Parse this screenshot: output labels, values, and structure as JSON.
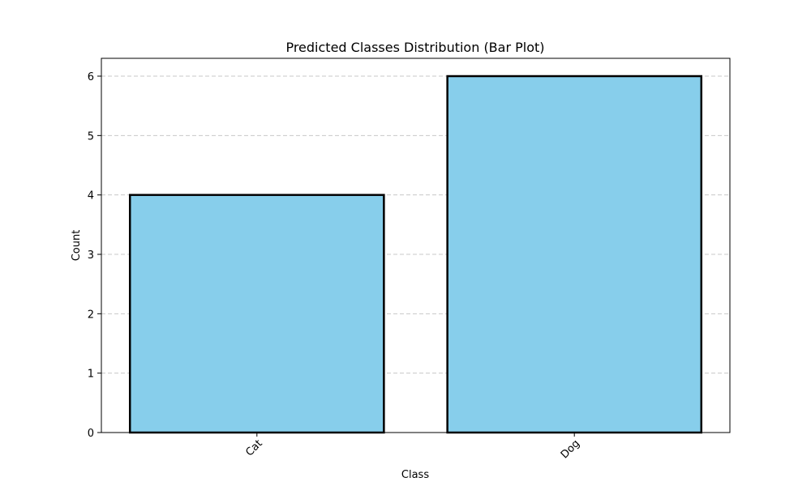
{
  "chart_data": {
    "type": "bar",
    "title": "Predicted Classes Distribution (Bar Plot)",
    "xlabel": "Class",
    "ylabel": "Count",
    "categories": [
      "Cat",
      "Dog"
    ],
    "values": [
      4,
      6
    ],
    "ylim": [
      0,
      6.3
    ],
    "yticks": [
      0,
      1,
      2,
      3,
      4,
      5,
      6
    ],
    "grid": "y-dashed",
    "xtick_rotation": 45,
    "colors": {
      "bar_fill": "#87CEEB",
      "bar_edge": "#000000",
      "grid": "#c8c8c8"
    }
  }
}
